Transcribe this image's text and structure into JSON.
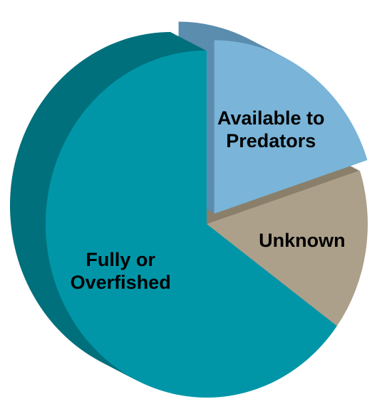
{
  "chart_data": {
    "type": "pie",
    "categories": [
      "Available to Predators",
      "Unknown",
      "Fully or Overfished"
    ],
    "values": [
      20,
      15,
      65
    ],
    "colors": [
      "#7ab4d8",
      "#ada08a",
      "#0096a8"
    ],
    "side_colors": [
      "#5b8dae",
      "#8a7f6b",
      "#00707c"
    ],
    "exploded": [
      true,
      false,
      false
    ]
  }
}
